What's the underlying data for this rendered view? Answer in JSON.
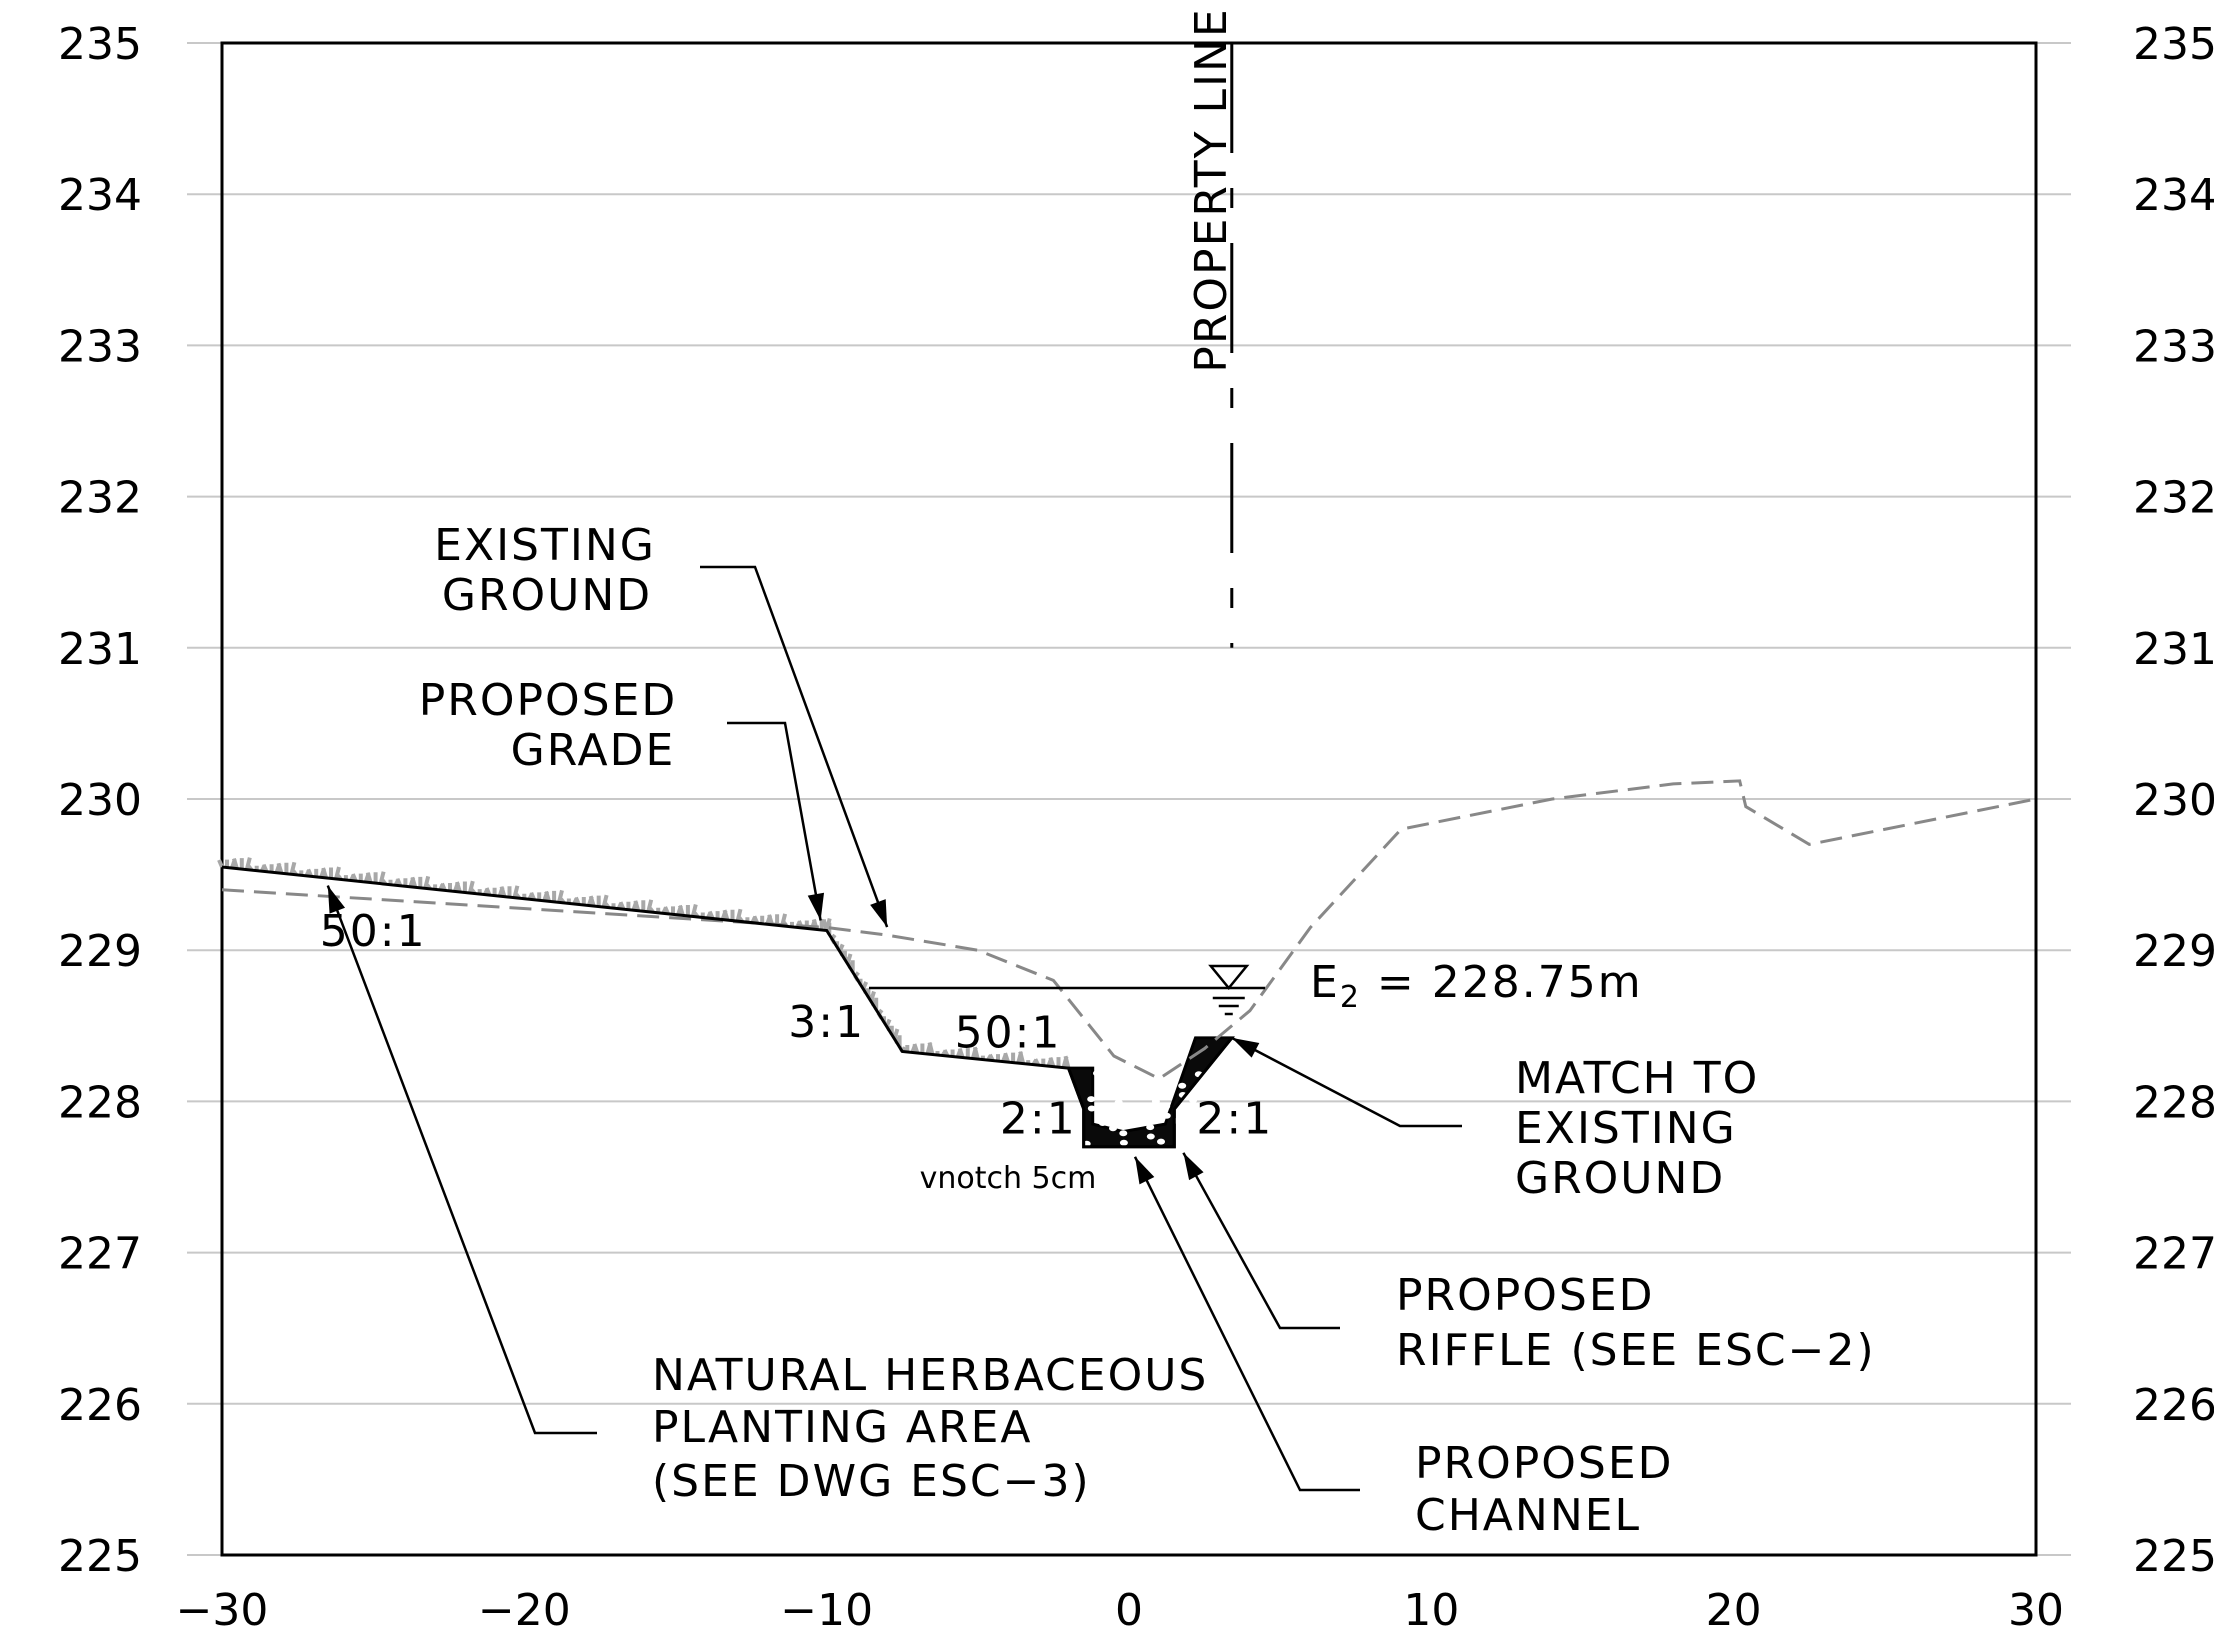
{
  "chart_data": {
    "type": "line",
    "xlim": [
      -30,
      30
    ],
    "ylim": [
      225,
      235
    ],
    "x_ticks": [
      "−30",
      "−20",
      "−10",
      "0",
      "10",
      "20",
      "30"
    ],
    "y_ticks": [
      "235",
      "234",
      "233",
      "232",
      "231",
      "230",
      "229",
      "228",
      "227",
      "226",
      "225"
    ],
    "grid": "horizontal",
    "series": [
      {
        "key": "existing_ground",
        "x": [
          -30,
          -10,
          -8,
          -5,
          -2.5,
          -0.5,
          1,
          2.5,
          4,
          6,
          9,
          14,
          18,
          20.2,
          20.4,
          22.5,
          30
        ],
        "y": [
          229.4,
          229.15,
          229.1,
          229.0,
          228.8,
          228.3,
          228.15,
          228.35,
          228.6,
          229.15,
          229.8,
          230.0,
          230.1,
          230.12,
          229.95,
          229.7,
          230.0
        ]
      },
      {
        "key": "proposed_grade",
        "x": [
          -30,
          -10,
          -7.5,
          -2,
          -1.5,
          -1.5,
          1.5,
          1.5,
          3.4
        ],
        "y": [
          229.55,
          229.13,
          228.33,
          228.22,
          227.95,
          227.7,
          227.7,
          227.95,
          228.42
        ]
      }
    ],
    "water_surface": {
      "x": [
        -8.6,
        4.5
      ],
      "y": 228.75
    },
    "property_line_x": 3.4,
    "slope_labels": [
      {
        "text": "50:1",
        "x": -25,
        "y": 229.12
      },
      {
        "text": "3:1",
        "x": -10,
        "y": 228.52
      },
      {
        "text": "50:1",
        "x": -4,
        "y": 228.45
      },
      {
        "text": "2:1",
        "x": -3,
        "y": 227.88
      },
      {
        "text": "2:1",
        "x": 3.5,
        "y": 227.88
      }
    ],
    "annotations": {
      "property_line": "PROPERTY LINE",
      "existing_ground": [
        "EXISTING",
        "GROUND"
      ],
      "proposed_grade": [
        "PROPOSED",
        "GRADE"
      ],
      "water_level_prefix": "E",
      "water_level_subscript": "2",
      "water_level_value": " = 228.75m",
      "match_existing": [
        "MATCH TO",
        "EXISTING",
        "GROUND"
      ],
      "vnotch": "vnotch 5cm",
      "proposed_riffle": [
        "PROPOSED",
        "RIFFLE (SEE ESC−2)"
      ],
      "herbaceous": [
        "NATURAL HERBACEOUS",
        "PLANTING AREA",
        "(SEE DWG ESC−3)"
      ],
      "proposed_channel": [
        "PROPOSED",
        "CHANNEL"
      ]
    }
  }
}
